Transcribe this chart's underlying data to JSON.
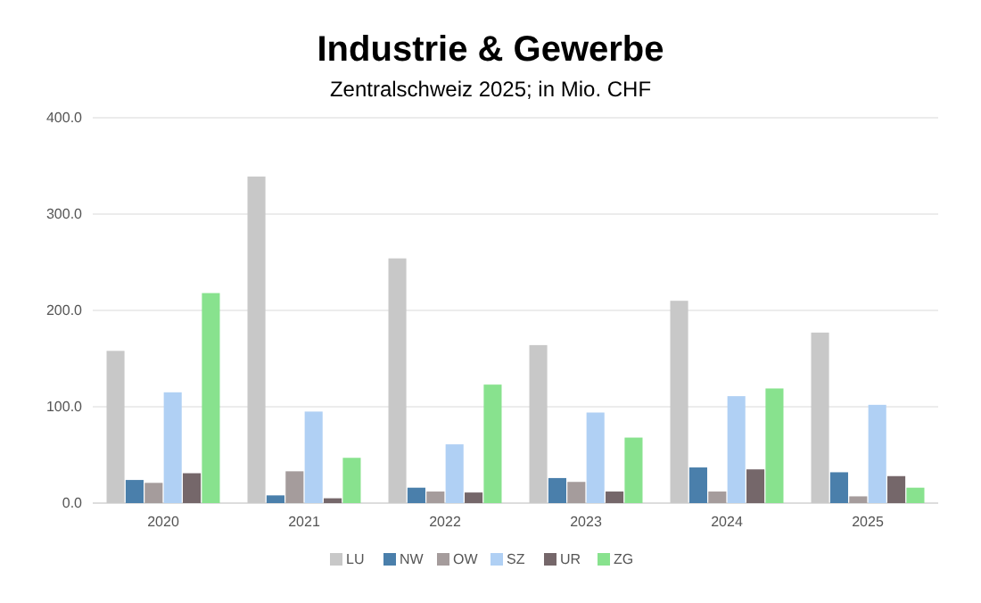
{
  "chart_data": {
    "type": "bar",
    "title": "Industrie & Gewerbe",
    "subtitle": "Zentralschweiz 2025; in Mio. CHF",
    "categories": [
      "2020",
      "2021",
      "2022",
      "2023",
      "2024",
      "2025"
    ],
    "series": [
      {
        "name": "LU",
        "color": "#c8c8c8",
        "values": [
          158,
          339,
          254,
          164,
          210,
          177
        ]
      },
      {
        "name": "NW",
        "color": "#4a7fab",
        "values": [
          24,
          8,
          16,
          26,
          37,
          32
        ]
      },
      {
        "name": "OW",
        "color": "#a59c9c",
        "values": [
          21,
          33,
          12,
          22,
          12,
          7
        ]
      },
      {
        "name": "SZ",
        "color": "#b0d0f4",
        "values": [
          115,
          95,
          61,
          94,
          111,
          102
        ]
      },
      {
        "name": "UR",
        "color": "#75676a",
        "values": [
          31,
          5,
          11,
          12,
          35,
          28
        ]
      },
      {
        "name": "ZG",
        "color": "#88e28e",
        "values": [
          218,
          47,
          123,
          68,
          119,
          16
        ]
      }
    ],
    "ylim": [
      0,
      400
    ],
    "yticks": [
      {
        "value": 0,
        "label": "0.0"
      },
      {
        "value": 100,
        "label": "100.0"
      },
      {
        "value": 200,
        "label": "200.0"
      },
      {
        "value": 300,
        "label": "300.0"
      },
      {
        "value": 400,
        "label": "400.0"
      }
    ],
    "grid": "y",
    "legend": "bottom"
  }
}
